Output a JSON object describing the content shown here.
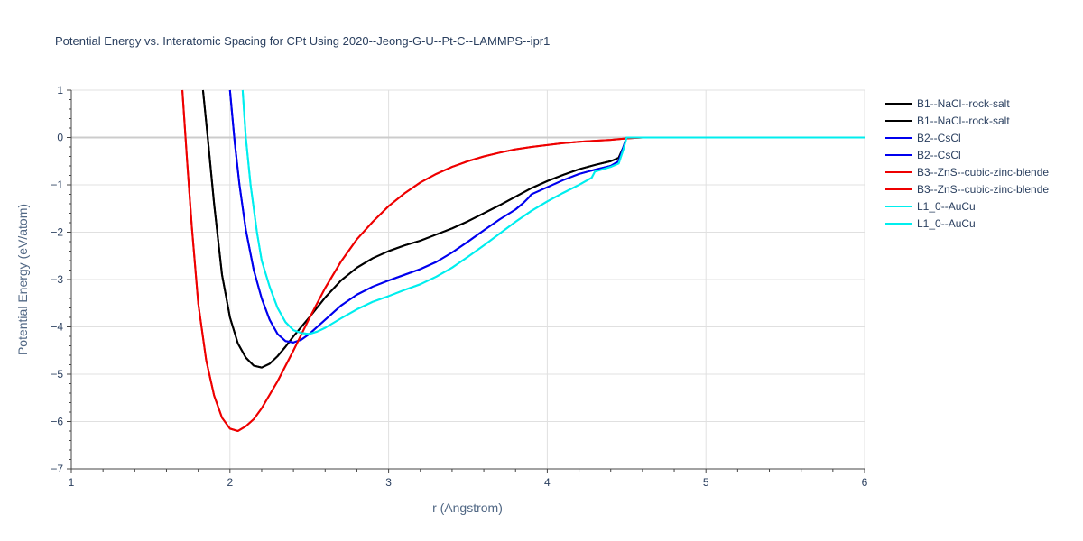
{
  "chart_data": {
    "type": "line",
    "title": "Potential Energy vs. Interatomic Spacing for CPt Using 2020--Jeong-G-U--Pt-C--LAMMPS--ipr1",
    "xlabel": "r (Angstrom)",
    "ylabel": "Potential Energy (eV/atom)",
    "xlim": [
      1,
      6
    ],
    "ylim": [
      -7,
      1
    ],
    "x_ticks": [
      1,
      2,
      3,
      4,
      5,
      6
    ],
    "y_ticks": [
      1,
      0,
      -1,
      -2,
      -3,
      -4,
      -5,
      -6,
      -7
    ],
    "x_tick_labels": [
      "1",
      "2",
      "3",
      "4",
      "5",
      "6"
    ],
    "y_tick_labels": [
      "1",
      "0",
      "−1",
      "−2",
      "−3",
      "−4",
      "−5",
      "−6",
      "−7"
    ],
    "grid": true,
    "legend_position": "right",
    "series": [
      {
        "name": "B1--NaCl--rock-salt",
        "color": "#000000",
        "x": [
          1.83,
          1.86,
          1.9,
          1.95,
          2.0,
          2.05,
          2.1,
          2.15,
          2.2,
          2.25,
          2.3,
          2.35,
          2.4,
          2.5,
          2.6,
          2.7,
          2.8,
          2.9,
          3.0,
          3.1,
          3.2,
          3.3,
          3.4,
          3.5,
          3.6,
          3.7,
          3.8,
          3.9,
          4.0,
          4.1,
          4.2,
          4.3,
          4.4,
          4.45,
          4.48,
          4.5,
          4.6,
          5.0,
          6.0
        ],
        "y": [
          1.0,
          0.0,
          -1.4,
          -2.9,
          -3.8,
          -4.35,
          -4.65,
          -4.82,
          -4.86,
          -4.78,
          -4.62,
          -4.42,
          -4.2,
          -3.8,
          -3.38,
          -3.02,
          -2.75,
          -2.55,
          -2.4,
          -2.28,
          -2.18,
          -2.05,
          -1.92,
          -1.77,
          -1.6,
          -1.43,
          -1.25,
          -1.07,
          -0.92,
          -0.79,
          -0.67,
          -0.58,
          -0.5,
          -0.43,
          -0.2,
          0.0,
          0.0,
          0.0,
          0.0
        ]
      },
      {
        "name": "B1--NaCl--rock-salt",
        "color": "#000000",
        "x": [
          1.83,
          1.86,
          1.9,
          1.95,
          2.0,
          2.05,
          2.1,
          2.15,
          2.2,
          2.25,
          2.3,
          2.35,
          2.4,
          2.5,
          2.6,
          2.7,
          2.8,
          2.9,
          3.0,
          3.1,
          3.2,
          3.3,
          3.4,
          3.5,
          3.6,
          3.7,
          3.8,
          3.9,
          4.0,
          4.1,
          4.2,
          4.3,
          4.4,
          4.45,
          4.48,
          4.5,
          4.6,
          5.0,
          6.0
        ],
        "y": [
          1.0,
          0.0,
          -1.4,
          -2.9,
          -3.8,
          -4.35,
          -4.65,
          -4.82,
          -4.86,
          -4.78,
          -4.62,
          -4.42,
          -4.2,
          -3.8,
          -3.38,
          -3.02,
          -2.75,
          -2.55,
          -2.4,
          -2.28,
          -2.18,
          -2.05,
          -1.92,
          -1.77,
          -1.6,
          -1.43,
          -1.25,
          -1.07,
          -0.92,
          -0.79,
          -0.67,
          -0.58,
          -0.5,
          -0.43,
          -0.2,
          0.0,
          0.0,
          0.0,
          0.0
        ]
      },
      {
        "name": "B2--CsCl",
        "color": "#0000ee",
        "x": [
          2.0,
          2.03,
          2.06,
          2.1,
          2.15,
          2.2,
          2.25,
          2.3,
          2.35,
          2.4,
          2.45,
          2.5,
          2.6,
          2.7,
          2.8,
          2.9,
          3.0,
          3.1,
          3.2,
          3.3,
          3.4,
          3.5,
          3.6,
          3.7,
          3.8,
          3.85,
          3.88,
          3.9,
          4.0,
          4.1,
          4.2,
          4.3,
          4.4,
          4.45,
          4.48,
          4.5,
          4.6,
          5.0,
          6.0
        ],
        "y": [
          1.0,
          -0.1,
          -1.0,
          -1.95,
          -2.8,
          -3.4,
          -3.85,
          -4.15,
          -4.3,
          -4.33,
          -4.27,
          -4.15,
          -3.85,
          -3.55,
          -3.32,
          -3.15,
          -3.02,
          -2.9,
          -2.78,
          -2.63,
          -2.43,
          -2.2,
          -1.96,
          -1.73,
          -1.52,
          -1.38,
          -1.28,
          -1.2,
          -1.05,
          -0.9,
          -0.77,
          -0.68,
          -0.6,
          -0.5,
          -0.2,
          0.0,
          0.0,
          0.0,
          0.0
        ]
      },
      {
        "name": "B2--CsCl",
        "color": "#0000ee",
        "x": [
          2.0,
          2.03,
          2.06,
          2.1,
          2.15,
          2.2,
          2.25,
          2.3,
          2.35,
          2.4,
          2.45,
          2.5,
          2.6,
          2.7,
          2.8,
          2.9,
          3.0,
          3.1,
          3.2,
          3.3,
          3.4,
          3.5,
          3.6,
          3.7,
          3.8,
          3.85,
          3.88,
          3.9,
          4.0,
          4.1,
          4.2,
          4.3,
          4.4,
          4.45,
          4.48,
          4.5,
          4.6,
          5.0,
          6.0
        ],
        "y": [
          1.0,
          -0.1,
          -1.0,
          -1.95,
          -2.8,
          -3.4,
          -3.85,
          -4.15,
          -4.3,
          -4.33,
          -4.27,
          -4.15,
          -3.85,
          -3.55,
          -3.32,
          -3.15,
          -3.02,
          -2.9,
          -2.78,
          -2.63,
          -2.43,
          -2.2,
          -1.96,
          -1.73,
          -1.52,
          -1.38,
          -1.28,
          -1.2,
          -1.05,
          -0.9,
          -0.77,
          -0.68,
          -0.6,
          -0.5,
          -0.2,
          0.0,
          0.0,
          0.0,
          0.0
        ]
      },
      {
        "name": "B3--ZnS--cubic-zinc-blende",
        "color": "#ee0000",
        "x": [
          1.7,
          1.73,
          1.76,
          1.8,
          1.85,
          1.9,
          1.95,
          2.0,
          2.05,
          2.1,
          2.15,
          2.2,
          2.3,
          2.4,
          2.5,
          2.6,
          2.7,
          2.8,
          2.9,
          3.0,
          3.1,
          3.2,
          3.3,
          3.4,
          3.5,
          3.6,
          3.7,
          3.8,
          3.9,
          4.0,
          4.1,
          4.2,
          4.3,
          4.4,
          4.5,
          4.6,
          5.0,
          6.0
        ],
        "y": [
          1.0,
          -0.5,
          -1.9,
          -3.5,
          -4.7,
          -5.45,
          -5.92,
          -6.15,
          -6.2,
          -6.1,
          -5.95,
          -5.72,
          -5.15,
          -4.5,
          -3.82,
          -3.18,
          -2.62,
          -2.15,
          -1.78,
          -1.45,
          -1.18,
          -0.95,
          -0.77,
          -0.62,
          -0.5,
          -0.4,
          -0.32,
          -0.25,
          -0.2,
          -0.16,
          -0.12,
          -0.09,
          -0.07,
          -0.05,
          -0.02,
          0.0,
          0.0,
          0.0
        ]
      },
      {
        "name": "B3--ZnS--cubic-zinc-blende",
        "color": "#ee0000",
        "x": [
          1.7,
          1.73,
          1.76,
          1.8,
          1.85,
          1.9,
          1.95,
          2.0,
          2.05,
          2.1,
          2.15,
          2.2,
          2.3,
          2.4,
          2.5,
          2.6,
          2.7,
          2.8,
          2.9,
          3.0,
          3.1,
          3.2,
          3.3,
          3.4,
          3.5,
          3.6,
          3.7,
          3.8,
          3.9,
          4.0,
          4.1,
          4.2,
          4.3,
          4.4,
          4.5,
          4.6,
          5.0,
          6.0
        ],
        "y": [
          1.0,
          -0.5,
          -1.9,
          -3.5,
          -4.7,
          -5.45,
          -5.92,
          -6.15,
          -6.2,
          -6.1,
          -5.95,
          -5.72,
          -5.15,
          -4.5,
          -3.82,
          -3.18,
          -2.62,
          -2.15,
          -1.78,
          -1.45,
          -1.18,
          -0.95,
          -0.77,
          -0.62,
          -0.5,
          -0.4,
          -0.32,
          -0.25,
          -0.2,
          -0.16,
          -0.12,
          -0.09,
          -0.07,
          -0.05,
          -0.02,
          0.0,
          0.0,
          0.0
        ]
      },
      {
        "name": "L1_0--AuCu",
        "color": "#00eeee",
        "x": [
          2.08,
          2.1,
          2.13,
          2.17,
          2.2,
          2.25,
          2.3,
          2.35,
          2.4,
          2.45,
          2.5,
          2.55,
          2.6,
          2.7,
          2.8,
          2.9,
          3.0,
          3.1,
          3.2,
          3.3,
          3.4,
          3.5,
          3.6,
          3.7,
          3.8,
          3.9,
          4.0,
          4.1,
          4.2,
          4.28,
          4.3,
          4.35,
          4.4,
          4.45,
          4.48,
          4.5,
          4.6,
          5.0,
          6.0
        ],
        "y": [
          1.0,
          0.0,
          -1.0,
          -2.0,
          -2.6,
          -3.15,
          -3.6,
          -3.9,
          -4.07,
          -4.13,
          -4.15,
          -4.1,
          -4.02,
          -3.82,
          -3.63,
          -3.47,
          -3.35,
          -3.22,
          -3.1,
          -2.94,
          -2.75,
          -2.52,
          -2.28,
          -2.03,
          -1.78,
          -1.55,
          -1.35,
          -1.17,
          -1.0,
          -0.85,
          -0.72,
          -0.67,
          -0.62,
          -0.55,
          -0.25,
          0.0,
          0.0,
          0.0,
          0.0
        ]
      },
      {
        "name": "L1_0--AuCu",
        "color": "#00eeee",
        "x": [
          2.08,
          2.1,
          2.13,
          2.17,
          2.2,
          2.25,
          2.3,
          2.35,
          2.4,
          2.45,
          2.5,
          2.55,
          2.6,
          2.7,
          2.8,
          2.9,
          3.0,
          3.1,
          3.2,
          3.3,
          3.4,
          3.5,
          3.6,
          3.7,
          3.8,
          3.9,
          4.0,
          4.1,
          4.2,
          4.28,
          4.3,
          4.35,
          4.4,
          4.45,
          4.48,
          4.5,
          4.6,
          5.0,
          6.0
        ],
        "y": [
          1.0,
          0.0,
          -1.0,
          -2.0,
          -2.6,
          -3.15,
          -3.6,
          -3.9,
          -4.07,
          -4.13,
          -4.15,
          -4.1,
          -4.02,
          -3.82,
          -3.63,
          -3.47,
          -3.35,
          -3.22,
          -3.1,
          -2.94,
          -2.75,
          -2.52,
          -2.28,
          -2.03,
          -1.78,
          -1.55,
          -1.35,
          -1.17,
          -1.0,
          -0.85,
          -0.72,
          -0.67,
          -0.62,
          -0.55,
          -0.25,
          0.0,
          0.0,
          0.0,
          0.0
        ]
      }
    ]
  }
}
